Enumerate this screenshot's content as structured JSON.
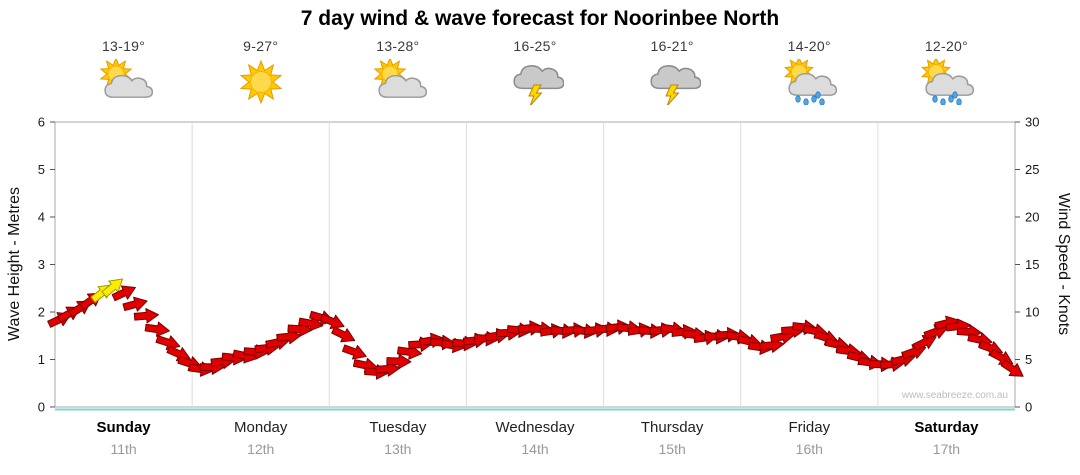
{
  "title": "7 day wind & wave forecast for Noorinbee North",
  "watermark": "www.seabreeze.com.au",
  "colors": {
    "arrow_fill": "#E00000",
    "arrow_stroke": "#7A0000",
    "arrow_highlight_fill": "#FFEB00",
    "arrow_highlight_stroke": "#9A9A00",
    "grid_line": "#DDDDDD",
    "plot_border": "#A9A9A9",
    "baseline": "#7FD6D6",
    "tick_text": "#1a1a1a"
  },
  "days": [
    {
      "name": "Sunday",
      "date": "11th",
      "temp": "13-19°",
      "icon": "sun-cloud",
      "emphasis": true
    },
    {
      "name": "Monday",
      "date": "12th",
      "temp": "9-27°",
      "icon": "sun",
      "emphasis": false
    },
    {
      "name": "Tuesday",
      "date": "13th",
      "temp": "13-28°",
      "icon": "sun-cloud",
      "emphasis": false
    },
    {
      "name": "Wednesday",
      "date": "14th",
      "temp": "16-25°",
      "icon": "storm",
      "emphasis": false
    },
    {
      "name": "Thursday",
      "date": "15th",
      "temp": "16-21°",
      "icon": "storm",
      "emphasis": false
    },
    {
      "name": "Friday",
      "date": "16th",
      "temp": "14-20°",
      "icon": "sun-rain",
      "emphasis": false
    },
    {
      "name": "Saturday",
      "date": "17th",
      "temp": "12-20°",
      "icon": "sun-rain",
      "emphasis": true
    }
  ],
  "axes": {
    "left_label": "Wave Height - Metres",
    "right_label": "Wind Speed - Knots",
    "left_ticks": [
      0,
      1,
      2,
      3,
      4,
      5,
      6
    ],
    "right_ticks": [
      0,
      5,
      10,
      15,
      20,
      25,
      30
    ],
    "left_max": 6,
    "right_max": 30
  },
  "chart_data": {
    "type": "wind-arrows",
    "x_axis": "time in days (0 = start Sunday 11th, 7 = end Saturday 17th)",
    "y_axis": "wind speed (knots, right axis); wave height scale 0-6 m on left axis",
    "ylim_knots": [
      0,
      30
    ],
    "ylim_metres": [
      0,
      6
    ],
    "legend": "arrows show wind speed (height) and direction (rotation); yellow = strongest gust period",
    "points": [
      {
        "x": 0.03,
        "k": 9.2,
        "d": -25
      },
      {
        "x": 0.1,
        "k": 9.8,
        "d": -30
      },
      {
        "x": 0.18,
        "k": 10.4,
        "d": -32
      },
      {
        "x": 0.26,
        "k": 11.2,
        "d": -35
      },
      {
        "x": 0.34,
        "k": 12.0,
        "d": -38,
        "c": "y"
      },
      {
        "x": 0.42,
        "k": 12.6,
        "d": -40,
        "c": "y"
      },
      {
        "x": 0.5,
        "k": 12.0,
        "d": -25
      },
      {
        "x": 0.58,
        "k": 10.8,
        "d": -15
      },
      {
        "x": 0.66,
        "k": 9.6,
        "d": -5
      },
      {
        "x": 0.74,
        "k": 8.2,
        "d": 8
      },
      {
        "x": 0.82,
        "k": 6.8,
        "d": 18
      },
      {
        "x": 0.9,
        "k": 5.6,
        "d": 24
      },
      {
        "x": 0.98,
        "k": 4.6,
        "d": 18
      },
      {
        "x": 1.06,
        "k": 4.0,
        "d": 8
      },
      {
        "x": 1.14,
        "k": 4.2,
        "d": 0
      },
      {
        "x": 1.22,
        "k": 4.8,
        "d": -6
      },
      {
        "x": 1.3,
        "k": 5.2,
        "d": 6
      },
      {
        "x": 1.38,
        "k": 5.4,
        "d": 12
      },
      {
        "x": 1.46,
        "k": 5.8,
        "d": 4
      },
      {
        "x": 1.54,
        "k": 6.2,
        "d": -6
      },
      {
        "x": 1.62,
        "k": 6.8,
        "d": -12
      },
      {
        "x": 1.7,
        "k": 7.4,
        "d": -6
      },
      {
        "x": 1.78,
        "k": 8.2,
        "d": 4
      },
      {
        "x": 1.86,
        "k": 8.8,
        "d": 10
      },
      {
        "x": 1.94,
        "k": 9.4,
        "d": 16
      },
      {
        "x": 2.02,
        "k": 9.0,
        "d": 22
      },
      {
        "x": 2.1,
        "k": 7.6,
        "d": 26
      },
      {
        "x": 2.18,
        "k": 5.8,
        "d": 20
      },
      {
        "x": 2.26,
        "k": 4.4,
        "d": 12
      },
      {
        "x": 2.34,
        "k": 3.7,
        "d": 4
      },
      {
        "x": 2.42,
        "k": 4.0,
        "d": -4
      },
      {
        "x": 2.5,
        "k": 4.8,
        "d": 2
      },
      {
        "x": 2.58,
        "k": 5.8,
        "d": 8
      },
      {
        "x": 2.66,
        "k": 6.6,
        "d": -4
      },
      {
        "x": 2.74,
        "k": 7.0,
        "d": -10
      },
      {
        "x": 2.82,
        "k": 6.8,
        "d": 2
      },
      {
        "x": 2.9,
        "k": 6.5,
        "d": 10
      },
      {
        "x": 2.98,
        "k": 6.7,
        "d": 4
      },
      {
        "x": 3.06,
        "k": 7.0,
        "d": -6
      },
      {
        "x": 3.14,
        "k": 7.2,
        "d": 4
      },
      {
        "x": 3.22,
        "k": 7.5,
        "d": -8
      },
      {
        "x": 3.3,
        "k": 7.8,
        "d": -2
      },
      {
        "x": 3.38,
        "k": 8.1,
        "d": 6
      },
      {
        "x": 3.46,
        "k": 8.3,
        "d": -6
      },
      {
        "x": 3.54,
        "k": 8.2,
        "d": 4
      },
      {
        "x": 3.62,
        "k": 8.0,
        "d": -8
      },
      {
        "x": 3.7,
        "k": 8.0,
        "d": 6
      },
      {
        "x": 3.78,
        "k": 8.1,
        "d": -4
      },
      {
        "x": 3.86,
        "k": 8.0,
        "d": 8
      },
      {
        "x": 3.94,
        "k": 8.1,
        "d": -6
      },
      {
        "x": 4.02,
        "k": 8.2,
        "d": 4
      },
      {
        "x": 4.1,
        "k": 8.4,
        "d": -6
      },
      {
        "x": 4.18,
        "k": 8.3,
        "d": 6
      },
      {
        "x": 4.26,
        "k": 8.1,
        "d": -8
      },
      {
        "x": 4.34,
        "k": 8.0,
        "d": 4
      },
      {
        "x": 4.42,
        "k": 8.1,
        "d": -4
      },
      {
        "x": 4.5,
        "k": 8.2,
        "d": 8
      },
      {
        "x": 4.58,
        "k": 7.9,
        "d": -6
      },
      {
        "x": 4.66,
        "k": 7.6,
        "d": 6
      },
      {
        "x": 4.74,
        "k": 7.3,
        "d": -8
      },
      {
        "x": 4.82,
        "k": 7.4,
        "d": 4
      },
      {
        "x": 4.9,
        "k": 7.6,
        "d": -4
      },
      {
        "x": 4.98,
        "k": 7.4,
        "d": 8
      },
      {
        "x": 5.06,
        "k": 6.9,
        "d": 14
      },
      {
        "x": 5.14,
        "k": 6.3,
        "d": 8
      },
      {
        "x": 5.22,
        "k": 6.5,
        "d": -6
      },
      {
        "x": 5.3,
        "k": 7.4,
        "d": -10
      },
      {
        "x": 5.38,
        "k": 8.1,
        "d": -4
      },
      {
        "x": 5.46,
        "k": 8.4,
        "d": 6
      },
      {
        "x": 5.54,
        "k": 8.0,
        "d": 12
      },
      {
        "x": 5.62,
        "k": 7.3,
        "d": 18
      },
      {
        "x": 5.7,
        "k": 6.6,
        "d": 12
      },
      {
        "x": 5.78,
        "k": 5.9,
        "d": 8
      },
      {
        "x": 5.86,
        "k": 5.2,
        "d": 14
      },
      {
        "x": 5.94,
        "k": 4.7,
        "d": 8
      },
      {
        "x": 6.02,
        "k": 4.5,
        "d": 2
      },
      {
        "x": 6.1,
        "k": 4.5,
        "d": -6
      },
      {
        "x": 6.18,
        "k": 5.0,
        "d": -14
      },
      {
        "x": 6.26,
        "k": 5.8,
        "d": -20
      },
      {
        "x": 6.34,
        "k": 6.8,
        "d": -26
      },
      {
        "x": 6.42,
        "k": 7.9,
        "d": -20
      },
      {
        "x": 6.5,
        "k": 8.8,
        "d": -14
      },
      {
        "x": 6.58,
        "k": 8.5,
        "d": -6
      },
      {
        "x": 6.66,
        "k": 7.9,
        "d": 4
      },
      {
        "x": 6.74,
        "k": 7.1,
        "d": 12
      },
      {
        "x": 6.82,
        "k": 6.2,
        "d": 20
      },
      {
        "x": 6.9,
        "k": 5.2,
        "d": 28
      },
      {
        "x": 6.98,
        "k": 4.0,
        "d": 34
      }
    ]
  }
}
